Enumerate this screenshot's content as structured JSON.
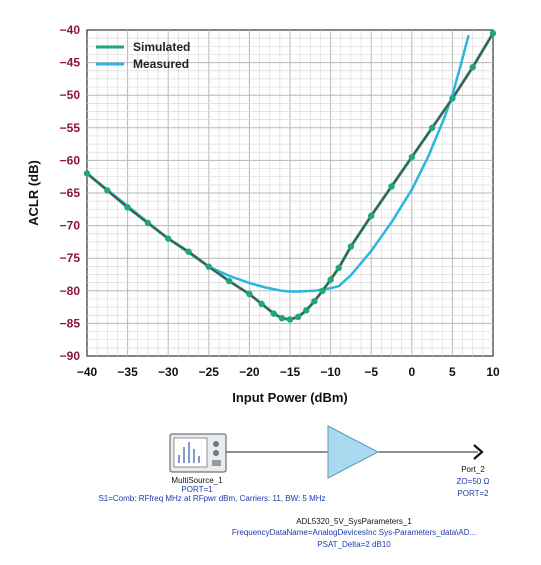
{
  "chart_data": {
    "type": "line",
    "xlabel": "Input Power (dBm)",
    "ylabel": "ACLR (dB)",
    "xlim": [
      -40,
      10
    ],
    "ylim": [
      -90,
      -40
    ],
    "x_ticks": [
      "−40",
      "−35",
      "−30",
      "−25",
      "−20",
      "−15",
      "−10",
      "−5",
      "0",
      "5",
      "10"
    ],
    "y_ticks": [
      "−40",
      "−45",
      "−50",
      "−55",
      "−60",
      "−65",
      "−70",
      "−75",
      "−80",
      "−85",
      "−90"
    ],
    "grid": true,
    "legend_position": "top-left",
    "series": [
      {
        "name": "Simulated",
        "color": "#1fa67a",
        "marker": "circle",
        "x": [
          -40,
          -37.5,
          -35,
          -32.5,
          -30,
          -27.5,
          -25,
          -22.5,
          -20,
          -18.5,
          -17,
          -16,
          -15,
          -14,
          -13,
          -12,
          -11,
          -10,
          -9,
          -7.5,
          -5,
          -2.5,
          0,
          2.5,
          5,
          7.5,
          10
        ],
        "y": [
          -62,
          -64.6,
          -67.2,
          -69.6,
          -72,
          -74,
          -76.3,
          -78.5,
          -80.5,
          -82,
          -83.5,
          -84.2,
          -84.4,
          -84,
          -83,
          -81.6,
          -80,
          -78.3,
          -76.5,
          -73.2,
          -68.5,
          -64,
          -59.5,
          -55,
          -50.5,
          -45.7,
          -40.5
        ]
      },
      {
        "name": "Measured",
        "color": "#2bb7dc",
        "marker": "none",
        "x": [
          -40,
          -35,
          -30,
          -25,
          -22.5,
          -20,
          -18,
          -16,
          -15,
          -14,
          -12,
          -10,
          -9,
          -7.5,
          -5,
          -2.5,
          0,
          2,
          4,
          5,
          6,
          7
        ],
        "y": [
          -62,
          -67,
          -72,
          -76.3,
          -77.7,
          -78.8,
          -79.5,
          -80,
          -80.1,
          -80.1,
          -80,
          -79.6,
          -79.3,
          -77.6,
          -73.9,
          -69.5,
          -64.5,
          -59.5,
          -53.5,
          -50,
          -45.5,
          -40.8
        ]
      }
    ]
  },
  "schematic": {
    "source_name": "MultiSource_1",
    "source_port": "PORT=1",
    "source_params": "S1=Comb: RFfreq MHz at RFpwr dBm, Carriers: 11, BW: 5 MHz",
    "amp_name": "ADL5320_5V_SysParameters_1",
    "amp_data": "FrequencyDataName=AnalogDevicesInc Sys-Parameters_data\\AD...",
    "amp_psat": "PSAT_Delta=2 dB10",
    "port_name": "Port_2",
    "port_z": "ZO=50 Ω",
    "port_num": "PORT=2"
  }
}
